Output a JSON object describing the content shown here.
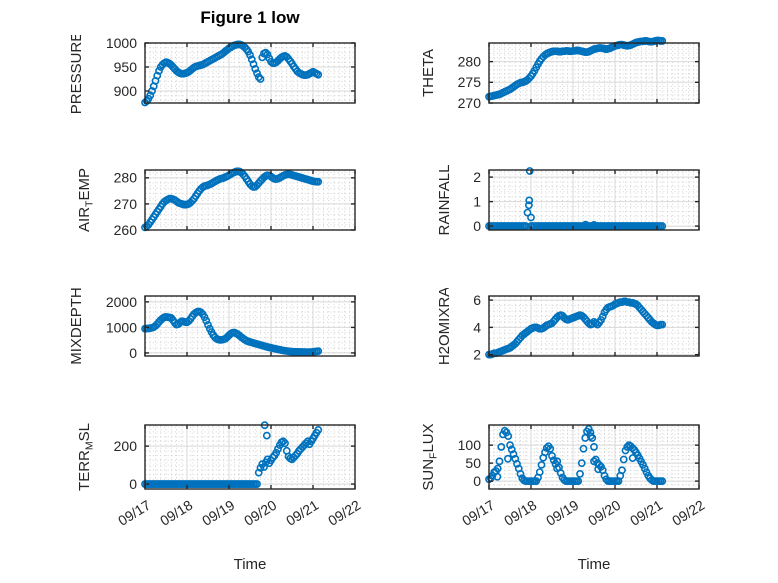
{
  "title": "Figure 1 low",
  "xlabel": "Time",
  "marker_color": "#0072BD",
  "axis_color": "#262626",
  "grid_color": "#d8d8d8",
  "minor_grid_color": "#cccccc",
  "x_axis": {
    "tick_labels": [
      "09/17",
      "09/18",
      "09/19",
      "09/20",
      "09/21",
      "09/22"
    ],
    "lim_days": [
      0,
      5
    ]
  },
  "chart_data": [
    {
      "type": "scatter",
      "name": "pressure",
      "ylabel": "PRESSURE",
      "ylabel_parts": [
        {
          "t": "PRESSURE",
          "sub": false
        }
      ],
      "row": 0,
      "col": 0,
      "yticks": [
        900,
        950,
        1000
      ],
      "ylim": [
        875,
        1000
      ],
      "minor_y_step": 10,
      "dt_hours": 1,
      "values": [
        876,
        879,
        884,
        891,
        900,
        910,
        921,
        932,
        942,
        950,
        955,
        958,
        960,
        959,
        957,
        954,
        950,
        946,
        942,
        939,
        937,
        936,
        936,
        937,
        938,
        940,
        943,
        946,
        949,
        951,
        952,
        953,
        954,
        955,
        957,
        959,
        961,
        963,
        965,
        967,
        969,
        971,
        973,
        975,
        977,
        980,
        983,
        986,
        989,
        991,
        993,
        995,
        996,
        997,
        997,
        996,
        994,
        991,
        987,
        982,
        975,
        966,
        956,
        946,
        937,
        929,
        925,
        970,
        978,
        980,
        976,
        968,
        961,
        958,
        958,
        960,
        963,
        967,
        970,
        972,
        973,
        971,
        967,
        962,
        957,
        951,
        946,
        941,
        938,
        936,
        934,
        933,
        933,
        934,
        936,
        938,
        940,
        938,
        936,
        934
      ],
      "extra": []
    },
    {
      "type": "scatter",
      "name": "theta",
      "ylabel": "THETA",
      "ylabel_parts": [
        {
          "t": "THETA",
          "sub": false
        }
      ],
      "row": 0,
      "col": 1,
      "yticks": [
        270,
        275,
        280
      ],
      "ylim": [
        270,
        284.5
      ],
      "minor_y_step": 1,
      "dt_hours": 1,
      "values": [
        271.5,
        271.6,
        271.7,
        271.8,
        271.9,
        272,
        272.1,
        272.3,
        272.5,
        272.7,
        272.9,
        273.1,
        273.3,
        273.6,
        273.9,
        274.2,
        274.5,
        274.7,
        274.9,
        275,
        275.1,
        275.3,
        275.6,
        276,
        276.5,
        277.1,
        277.8,
        278.6,
        279.4,
        280.1,
        280.7,
        281.2,
        281.6,
        281.9,
        282.1,
        282.3,
        282.4,
        282.5,
        282.5,
        282.5,
        282.4,
        282.4,
        282.5,
        282.5,
        282.6,
        282.6,
        282.5,
        282.5,
        282.6,
        282.6,
        282.7,
        282.7,
        282.6,
        282.5,
        282.4,
        282.3,
        282.3,
        282.4,
        282.6,
        282.8,
        283,
        283.1,
        283.2,
        283.3,
        283.3,
        283.2,
        283.1,
        283,
        283.1,
        283.2,
        283.4,
        283.6,
        283.8,
        283.9,
        284,
        284.1,
        284.1,
        284,
        283.9,
        283.8,
        283.9,
        284,
        284.2,
        284.4,
        284.6,
        284.7,
        284.8,
        284.9,
        284.9,
        285,
        285,
        284.9,
        284.8,
        284.8,
        284.9,
        285,
        285.1,
        285.1,
        285,
        285
      ],
      "extra": []
    },
    {
      "type": "scatter",
      "name": "air-temp",
      "ylabel": "AIR_TEMP",
      "ylabel_parts": [
        {
          "t": "AIR",
          "sub": false
        },
        {
          "t": "T",
          "sub": true
        },
        {
          "t": "EMP",
          "sub": false
        }
      ],
      "row": 1,
      "col": 0,
      "yticks": [
        260,
        270,
        280
      ],
      "ylim": [
        260,
        283
      ],
      "minor_y_step": 2,
      "dt_hours": 1,
      "values": [
        261,
        261.5,
        262,
        263,
        264,
        265,
        266,
        267,
        268,
        269,
        270,
        270.8,
        271.3,
        271.7,
        272,
        272,
        271.8,
        271.5,
        271,
        270.5,
        270.2,
        270,
        269.8,
        269.7,
        269.8,
        270,
        270.5,
        271.2,
        272,
        273,
        274,
        275,
        275.8,
        276.4,
        276.8,
        277,
        277.2,
        277.5,
        277.8,
        278.2,
        278.6,
        279,
        279.3,
        279.6,
        279.8,
        280,
        280.3,
        280.6,
        281,
        281.4,
        281.8,
        282.1,
        282.4,
        282.5,
        282.4,
        282,
        281.4,
        280.6,
        279.6,
        278.6,
        277.6,
        276.9,
        276.5,
        276.6,
        277.2,
        278,
        278.8,
        279.5,
        280.2,
        280.7,
        281,
        280.9,
        280.5,
        280,
        279.6,
        279.5,
        279.7,
        280,
        280.4,
        280.8,
        281.1,
        281.3,
        281.4,
        281.3,
        281.1,
        280.9,
        280.7,
        280.5,
        280.3,
        280.1,
        279.9,
        279.7,
        279.5,
        279.3,
        279.1,
        278.9,
        278.7,
        278.6,
        278.5,
        278.5
      ],
      "extra": []
    },
    {
      "type": "scatter",
      "name": "rainfall",
      "ylabel": "RAINFALL",
      "ylabel_parts": [
        {
          "t": "RAINFALL",
          "sub": false
        }
      ],
      "row": 1,
      "col": 1,
      "yticks": [
        0,
        1,
        2
      ],
      "ylim": [
        -0.16,
        2.29
      ],
      "minor_y_step": 0.2,
      "dt_hours": 1,
      "values": [
        0,
        0,
        0,
        0,
        0,
        0,
        0,
        0,
        0,
        0,
        0,
        0,
        0,
        0,
        0,
        0,
        0,
        0,
        0,
        0,
        0,
        0,
        0.55,
        1.05,
        0,
        0,
        0,
        0,
        0,
        0,
        0,
        0,
        0,
        0,
        0,
        0,
        0,
        0,
        0,
        0,
        0,
        0,
        0,
        0,
        0,
        0,
        0,
        0,
        0,
        0,
        0,
        0,
        0,
        0,
        0,
        0,
        0,
        0,
        0,
        0,
        0,
        0,
        0,
        0,
        0,
        0,
        0,
        0,
        0,
        0,
        0,
        0,
        0,
        0,
        0,
        0,
        0,
        0,
        0,
        0,
        0,
        0,
        0,
        0,
        0,
        0,
        0,
        0,
        0,
        0,
        0,
        0,
        0,
        0,
        0,
        0,
        0,
        0,
        0,
        0
      ],
      "extra": [
        [
          0.95,
          0.85
        ],
        [
          0.97,
          2.25
        ],
        [
          1.0,
          0.35
        ],
        [
          2.3,
          0.06
        ],
        [
          2.5,
          0.05
        ]
      ]
    },
    {
      "type": "scatter",
      "name": "mixdepth",
      "ylabel": "MIXDEPTH",
      "ylabel_parts": [
        {
          "t": "MIXDEPTH",
          "sub": false
        }
      ],
      "row": 2,
      "col": 0,
      "yticks": [
        0,
        1000,
        2000
      ],
      "ylim": [
        -120,
        2230
      ],
      "minor_y_step": 200,
      "dt_hours": 1,
      "values": [
        950,
        955,
        960,
        970,
        985,
        1010,
        1060,
        1130,
        1210,
        1290,
        1350,
        1395,
        1410,
        1400,
        1390,
        1370,
        1280,
        1180,
        1110,
        1130,
        1190,
        1240,
        1230,
        1210,
        1200,
        1250,
        1330,
        1430,
        1520,
        1580,
        1615,
        1620,
        1590,
        1520,
        1400,
        1260,
        1100,
        950,
        820,
        700,
        610,
        550,
        520,
        510,
        515,
        530,
        560,
        620,
        690,
        750,
        790,
        800,
        770,
        730,
        680,
        620,
        570,
        520,
        480,
        450,
        430,
        410,
        390,
        370,
        350,
        330,
        310,
        290,
        270,
        250,
        230,
        215,
        200,
        185,
        170,
        155,
        140,
        125,
        110,
        95,
        85,
        75,
        65,
        58,
        52,
        47,
        44,
        42,
        40,
        38,
        36,
        34,
        33,
        32,
        33,
        36,
        42,
        52,
        62,
        72
      ],
      "extra": []
    },
    {
      "type": "scatter",
      "name": "h2omixra",
      "ylabel": "H2OMIXRA",
      "ylabel_parts": [
        {
          "t": "H2OMIXRA",
          "sub": false
        }
      ],
      "row": 2,
      "col": 1,
      "yticks": [
        2,
        4,
        6
      ],
      "ylim": [
        1.9,
        6.3
      ],
      "minor_y_step": 0.4,
      "dt_hours": 1,
      "values": [
        2,
        2,
        2.05,
        2.1,
        2.1,
        2.15,
        2.2,
        2.25,
        2.3,
        2.35,
        2.4,
        2.45,
        2.5,
        2.6,
        2.7,
        2.8,
        2.95,
        3.1,
        3.25,
        3.4,
        3.5,
        3.6,
        3.7,
        3.8,
        3.9,
        3.95,
        4,
        4,
        3.95,
        3.9,
        3.9,
        3.95,
        4.05,
        4.15,
        4.2,
        4.25,
        4.3,
        4.45,
        4.6,
        4.75,
        4.85,
        4.9,
        4.85,
        4.7,
        4.6,
        4.55,
        4.6,
        4.65,
        4.7,
        4.75,
        4.8,
        4.85,
        4.9,
        4.85,
        4.75,
        4.6,
        4.45,
        4.3,
        4.2,
        4.25,
        4.4,
        4.3,
        4.2,
        4.35,
        4.55,
        4.8,
        5.1,
        5.3,
        5.45,
        5.5,
        5.55,
        5.6,
        5.7,
        5.75,
        5.8,
        5.85,
        5.85,
        5.9,
        5.9,
        5.85,
        5.85,
        5.8,
        5.8,
        5.75,
        5.7,
        5.6,
        5.45,
        5.3,
        5.15,
        5,
        4.85,
        4.7,
        4.55,
        4.4,
        4.3,
        4.2,
        4.15,
        4.15,
        4.2,
        4.2
      ],
      "extra": []
    },
    {
      "type": "scatter",
      "name": "terr-msl",
      "ylabel": "TERR_MSL",
      "ylabel_parts": [
        {
          "t": "TERR",
          "sub": false
        },
        {
          "t": "M",
          "sub": true
        },
        {
          "t": "SL",
          "sub": false
        }
      ],
      "row": 3,
      "col": 0,
      "yticks": [
        0,
        200
      ],
      "ylim": [
        -26,
        311
      ],
      "minor_y_step": 25,
      "dt_hours": 1,
      "values": [
        0,
        0,
        0,
        0,
        0,
        0,
        0,
        0,
        0,
        0,
        0,
        0,
        0,
        0,
        0,
        0,
        0,
        0,
        0,
        0,
        0,
        0,
        0,
        0,
        0,
        0,
        0,
        0,
        0,
        0,
        0,
        0,
        0,
        0,
        0,
        0,
        0,
        0,
        0,
        0,
        0,
        0,
        0,
        0,
        0,
        0,
        0,
        0,
        0,
        0,
        0,
        0,
        0,
        0,
        0,
        0,
        0,
        0,
        0,
        0,
        0,
        0,
        0,
        0,
        0,
        60,
        85,
        105,
        90,
        115,
        130,
        110,
        125,
        140,
        150,
        165,
        185,
        205,
        220,
        225,
        215,
        175,
        145,
        135,
        130,
        140,
        150,
        160,
        175,
        185,
        195,
        205,
        215,
        225,
        210,
        225,
        240,
        255,
        270,
        285
      ],
      "extra": [
        [
          2.85,
          310
        ],
        [
          2.9,
          255
        ]
      ]
    },
    {
      "type": "scatter",
      "name": "sun-flux",
      "ylabel": "SUN_FLUX",
      "ylabel_parts": [
        {
          "t": "SUN",
          "sub": false
        },
        {
          "t": "F",
          "sub": true
        },
        {
          "t": "LUX",
          "sub": false
        }
      ],
      "row": 3,
      "col": 1,
      "yticks": [
        0,
        50,
        100
      ],
      "ylim": [
        -22,
        156
      ],
      "minor_y_step": 10,
      "dt_hours": 1,
      "values": [
        5,
        8,
        15,
        25,
        28,
        35,
        55,
        95,
        130,
        140,
        135,
        125,
        100,
        88,
        75,
        62,
        48,
        35,
        20,
        8,
        2,
        0,
        0,
        0,
        0,
        0,
        0,
        0,
        10,
        25,
        45,
        65,
        80,
        92,
        97,
        90,
        70,
        58,
        48,
        55,
        38,
        22,
        10,
        3,
        0,
        0,
        0,
        0,
        0,
        0,
        0,
        0,
        20,
        50,
        90,
        120,
        138,
        145,
        135,
        120,
        95,
        60,
        50,
        45,
        40,
        30,
        15,
        5,
        0,
        0,
        0,
        0,
        0,
        0,
        0,
        15,
        30,
        60,
        85,
        95,
        100,
        97,
        92,
        87,
        80,
        72,
        63,
        54,
        45,
        35,
        25,
        15,
        8,
        3,
        0,
        0,
        0,
        0,
        0,
        0
      ],
      "extra": [
        [
          0.2,
          12
        ],
        [
          0.45,
          62
        ],
        [
          1.62,
          35
        ],
        [
          2.42,
          125
        ],
        [
          2.5,
          55
        ],
        [
          2.6,
          33
        ],
        [
          3.42,
          64
        ]
      ]
    }
  ]
}
